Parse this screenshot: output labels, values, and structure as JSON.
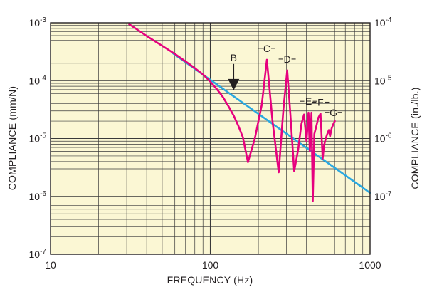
{
  "chart_data": {
    "type": "line",
    "xlabel": "FREQUENCY (Hz)",
    "ylabel": "COMPLIANCE (mm/N)",
    "y2label": "COMPLIANCE (in./lb.)",
    "xscale": "log",
    "yscale": "log",
    "xlim": [
      10,
      1000
    ],
    "ylim": [
      1e-07,
      0.001
    ],
    "y2lim": [
      1e-08,
      0.0001
    ],
    "grid": true,
    "x_ticks": [
      {
        "value": 10,
        "label": "10"
      },
      {
        "value": 100,
        "label": "100"
      },
      {
        "value": 1000,
        "label": "1000"
      }
    ],
    "y_ticks": [
      {
        "value": 1e-07,
        "base": "10",
        "exp": "-7"
      },
      {
        "value": 1e-06,
        "base": "10",
        "exp": "-6"
      },
      {
        "value": 1e-05,
        "base": "10",
        "exp": "-5"
      },
      {
        "value": 0.0001,
        "base": "10",
        "exp": "-4"
      },
      {
        "value": 0.001,
        "base": "10",
        "exp": "-3"
      }
    ],
    "y2_ticks": [
      {
        "value": 1e-07,
        "base": "10",
        "exp": "-7"
      },
      {
        "value": 1e-06,
        "base": "10",
        "exp": "-6"
      },
      {
        "value": 1e-05,
        "base": "10",
        "exp": "-5"
      },
      {
        "value": 0.0001,
        "base": "10",
        "exp": "-4"
      }
    ],
    "series": [
      {
        "color": "#2aa8e0",
        "x": [
          58,
          1000
        ],
        "y": [
          0.0003,
          1.15e-06
        ]
      },
      {
        "color": "#e6007e",
        "x": [
          31,
          40,
          50,
          60,
          70,
          80,
          90,
          100,
          110,
          120,
          130,
          140,
          150,
          160,
          172,
          190,
          210,
          226,
          245,
          268,
          287,
          303,
          316,
          335,
          355,
          372,
          386,
          400,
          412,
          420,
          430,
          438,
          448,
          460,
          475,
          490,
          505,
          515,
          528,
          540,
          552,
          562,
          575,
          590,
          602
        ],
        "y": [
          0.00095,
          0.00059,
          0.0004,
          0.00029,
          0.000215,
          0.000165,
          0.000128,
          9.6e-05,
          7.1e-05,
          5.2e-05,
          3.6e-05,
          2.5e-05,
          1.65e-05,
          1.05e-05,
          3.9e-06,
          1e-05,
          3.8e-05,
          0.00023,
          2e-05,
          2.6e-06,
          3.3e-05,
          0.00015,
          3e-05,
          2.7e-06,
          6.5e-06,
          1.8e-05,
          2.6e-05,
          9e-06,
          2.8e-05,
          6e-06,
          2.8e-05,
          8.3e-07,
          1.2e-05,
          1.6e-05,
          2.3e-05,
          2.7e-05,
          4.5e-06,
          7.5e-06,
          1e-05,
          1.2e-05,
          1.4e-05,
          1.1e-05,
          1.5e-05,
          1.8e-05,
          2e-05
        ]
      }
    ],
    "annotations": [
      {
        "label": "B",
        "x": 140,
        "y": 7e-05,
        "type": "arrow"
      },
      {
        "label": "C",
        "x": 226,
        "y": 0.00023,
        "type": "leader"
      },
      {
        "label": "D",
        "x": 303,
        "y": 0.00015,
        "type": "leader"
      },
      {
        "label": "E",
        "x": 412,
        "y": 2.8e-05,
        "type": "leader"
      },
      {
        "label": "F",
        "x": 490,
        "y": 2.7e-05,
        "type": "leader"
      },
      {
        "label": "G",
        "x": 590,
        "y": 1.8e-05,
        "type": "leader"
      }
    ],
    "colors": {
      "plot_background": "#fbf7d4",
      "grid": "#3a3a3a",
      "frame": "#231f20"
    }
  }
}
